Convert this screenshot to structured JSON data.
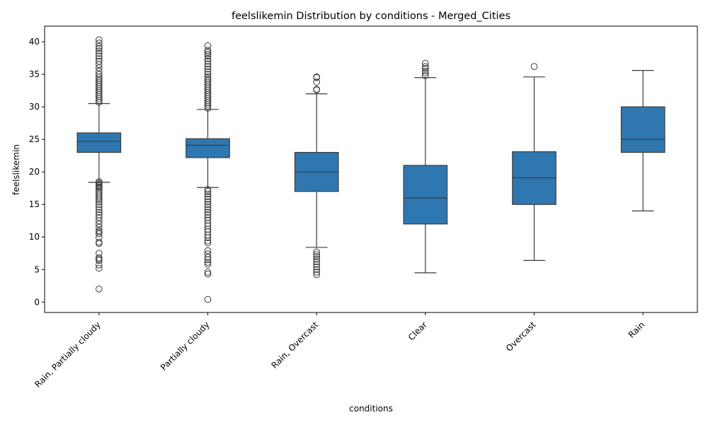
{
  "chart_data": {
    "type": "box",
    "title": "feelslikemin Distribution by conditions - Merged_Cities",
    "xlabel": "conditions",
    "ylabel": "feelslikemin",
    "ylim": [
      -1.6,
      42.4
    ],
    "yticks": [
      0,
      5,
      10,
      15,
      20,
      25,
      30,
      35,
      40
    ],
    "grid": false,
    "box_color": "#2f77b1",
    "line_color": "#3a3a3a",
    "categories": [
      "Rain, Partially cloudy",
      "Partially cloudy",
      "Rain, Overcast",
      "Clear",
      "Overcast",
      "Rain"
    ],
    "boxes": [
      {
        "category": "Rain, Partially cloudy",
        "whisker_low": 18.4,
        "q1": 23.0,
        "median": 24.7,
        "q3": 26.0,
        "whisker_high": 30.5,
        "outliers": [
          2.0,
          5.2,
          5.7,
          6.4,
          6.6,
          6.8,
          7.5,
          9.0,
          9.2,
          9.9,
          10.5,
          10.8,
          11.0,
          11.5,
          12.0,
          12.5,
          13.0,
          13.4,
          13.8,
          14.2,
          14.6,
          15.0,
          15.4,
          15.7,
          16.0,
          16.3,
          16.6,
          16.9,
          17.2,
          17.5,
          17.7,
          17.9,
          18.1,
          18.3,
          18.5,
          30.7,
          31.0,
          31.3,
          31.6,
          31.9,
          32.2,
          32.5,
          32.8,
          33.1,
          33.4,
          33.7,
          34.0,
          34.3,
          34.6,
          35.0,
          35.5,
          36.0,
          36.5,
          37.0,
          37.4,
          37.8,
          38.2,
          38.6,
          39.0,
          39.3,
          39.8,
          40.3
        ]
      },
      {
        "category": "Partially cloudy",
        "whisker_low": 17.6,
        "q1": 22.2,
        "median": 24.1,
        "q3": 25.1,
        "whisker_high": 29.6,
        "outliers": [
          0.4,
          4.3,
          4.6,
          5.8,
          6.1,
          6.5,
          6.9,
          7.4,
          7.9,
          9.1,
          9.4,
          9.9,
          10.3,
          10.8,
          11.2,
          11.7,
          12.1,
          12.6,
          13.0,
          13.4,
          13.8,
          14.2,
          14.6,
          15.0,
          15.4,
          15.8,
          16.2,
          16.6,
          17.0,
          17.3,
          29.8,
          30.1,
          30.4,
          30.7,
          31.0,
          31.3,
          31.6,
          31.9,
          32.2,
          32.5,
          32.8,
          33.1,
          33.4,
          33.7,
          34.0,
          34.3,
          34.6,
          35.0,
          35.4,
          35.8,
          36.2,
          36.6,
          37.0,
          37.4,
          37.8,
          38.1,
          38.4,
          38.7,
          39.4
        ]
      },
      {
        "category": "Rain, Overcast",
        "whisker_low": 8.4,
        "q1": 17.0,
        "median": 20.0,
        "q3": 23.0,
        "whisker_high": 32.0,
        "outliers": [
          4.2,
          4.6,
          5.0,
          5.4,
          5.8,
          6.2,
          6.6,
          7.0,
          7.3,
          7.7,
          32.6,
          32.7,
          33.8,
          34.5,
          34.6
        ]
      },
      {
        "category": "Clear",
        "whisker_low": 4.5,
        "q1": 12.0,
        "median": 16.0,
        "q3": 21.0,
        "whisker_high": 34.5,
        "outliers": [
          34.8,
          35.2,
          35.5,
          35.9,
          36.2,
          36.7
        ]
      },
      {
        "category": "Overcast",
        "whisker_low": 6.4,
        "q1": 15.0,
        "median": 19.1,
        "q3": 23.1,
        "whisker_high": 34.6,
        "outliers": [
          36.2
        ]
      },
      {
        "category": "Rain",
        "whisker_low": 14.0,
        "q1": 23.0,
        "median": 25.0,
        "q3": 30.0,
        "whisker_high": 35.6,
        "outliers": []
      }
    ]
  }
}
